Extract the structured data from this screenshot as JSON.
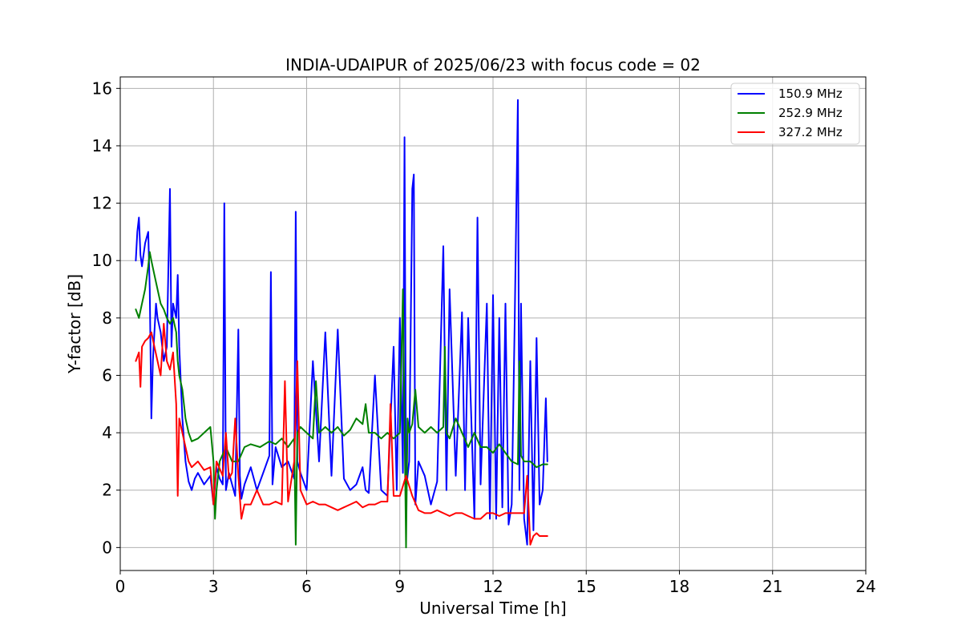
{
  "chart_data": {
    "type": "line",
    "title": "INDIA-UDAIPUR of 2025/06/23 with focus code = 02",
    "xlabel": "Universal Time [h]",
    "ylabel": "Y-factor [dB]",
    "xlim": [
      0,
      24
    ],
    "ylim": [
      -0.8,
      16.4
    ],
    "xticks": [
      0,
      3,
      6,
      9,
      12,
      15,
      18,
      21,
      24
    ],
    "yticks": [
      0,
      2,
      4,
      6,
      8,
      10,
      12,
      14,
      16
    ],
    "grid": true,
    "legend_position": "top-right",
    "series": [
      {
        "name": "150.9 MHz",
        "color": "#0000ff",
        "x": [
          0.5,
          0.55,
          0.6,
          0.65,
          0.7,
          0.8,
          0.9,
          0.95,
          1.0,
          1.05,
          1.1,
          1.15,
          1.2,
          1.3,
          1.4,
          1.5,
          1.6,
          1.65,
          1.7,
          1.8,
          1.85,
          1.9,
          2.0,
          2.1,
          2.2,
          2.3,
          2.4,
          2.5,
          2.7,
          2.9,
          3.0,
          3.1,
          3.2,
          3.3,
          3.35,
          3.4,
          3.5,
          3.7,
          3.8,
          3.85,
          3.9,
          4.0,
          4.2,
          4.4,
          4.6,
          4.8,
          4.85,
          4.9,
          5.0,
          5.2,
          5.4,
          5.6,
          5.65,
          5.7,
          5.8,
          6.0,
          6.2,
          6.4,
          6.6,
          6.8,
          7.0,
          7.2,
          7.4,
          7.6,
          7.8,
          7.9,
          8.0,
          8.2,
          8.4,
          8.6,
          8.8,
          8.9,
          9.0,
          9.1,
          9.15,
          9.2,
          9.3,
          9.4,
          9.45,
          9.5,
          9.6,
          9.8,
          10.0,
          10.2,
          10.4,
          10.5,
          10.6,
          10.8,
          11.0,
          11.1,
          11.2,
          11.4,
          11.5,
          11.6,
          11.8,
          11.9,
          12.0,
          12.1,
          12.2,
          12.3,
          12.4,
          12.5,
          12.6,
          12.7,
          12.8,
          12.85,
          12.9,
          13.0,
          13.1,
          13.2,
          13.3,
          13.4,
          13.5,
          13.6,
          13.7,
          13.75
        ],
        "values": [
          10.0,
          11.0,
          11.5,
          10.2,
          9.8,
          10.6,
          11.0,
          9.0,
          4.5,
          6.5,
          7.5,
          8.5,
          8.0,
          7.5,
          6.5,
          7.0,
          12.5,
          7.0,
          8.5,
          8.0,
          9.5,
          7.0,
          4.5,
          3.0,
          2.3,
          2.0,
          2.4,
          2.6,
          2.2,
          2.5,
          1.5,
          2.8,
          2.4,
          2.2,
          12.0,
          2.0,
          2.6,
          1.8,
          7.6,
          2.5,
          1.7,
          2.2,
          2.8,
          2.0,
          2.6,
          3.2,
          9.6,
          2.2,
          3.5,
          2.8,
          3.0,
          2.4,
          11.7,
          3.0,
          2.6,
          2.0,
          6.5,
          3.0,
          7.5,
          2.5,
          7.6,
          2.4,
          2.0,
          2.2,
          2.8,
          2.0,
          1.9,
          6.0,
          2.0,
          1.8,
          7.0,
          2.0,
          8.0,
          2.6,
          14.3,
          2.0,
          3.0,
          12.5,
          13.0,
          1.5,
          3.0,
          2.5,
          1.5,
          2.3,
          10.5,
          2.0,
          9.0,
          2.5,
          8.2,
          2.0,
          8.0,
          1.0,
          11.5,
          2.2,
          8.5,
          1.0,
          8.8,
          1.0,
          8.0,
          1.4,
          8.5,
          0.8,
          1.5,
          8.0,
          15.6,
          2.0,
          8.5,
          1.0,
          0.1,
          6.5,
          0.6,
          7.3,
          1.5,
          2.0,
          5.2,
          3.0
        ]
      },
      {
        "name": "252.9 MHz",
        "color": "#008000",
        "x": [
          0.5,
          0.6,
          0.7,
          0.8,
          0.9,
          0.95,
          1.0,
          1.1,
          1.2,
          1.3,
          1.4,
          1.5,
          1.6,
          1.7,
          1.8,
          1.85,
          1.9,
          2.0,
          2.1,
          2.2,
          2.3,
          2.5,
          2.7,
          2.9,
          3.0,
          3.05,
          3.1,
          3.2,
          3.4,
          3.6,
          3.8,
          4.0,
          4.2,
          4.5,
          4.8,
          5.0,
          5.2,
          5.4,
          5.6,
          5.65,
          5.7,
          5.8,
          6.0,
          6.2,
          6.3,
          6.4,
          6.6,
          6.8,
          7.0,
          7.2,
          7.4,
          7.6,
          7.8,
          7.9,
          8.0,
          8.2,
          8.4,
          8.6,
          8.8,
          9.0,
          9.1,
          9.2,
          9.25,
          9.3,
          9.4,
          9.5,
          9.6,
          9.8,
          10.0,
          10.2,
          10.4,
          10.45,
          10.5,
          10.6,
          10.8,
          11.0,
          11.2,
          11.4,
          11.6,
          11.8,
          12.0,
          12.2,
          12.4,
          12.6,
          12.8,
          12.85,
          12.9,
          13.0,
          13.2,
          13.4,
          13.6,
          13.75
        ],
        "values": [
          8.3,
          8.0,
          8.5,
          9.0,
          9.8,
          10.3,
          10.0,
          9.5,
          9.0,
          8.5,
          8.3,
          8.0,
          7.8,
          8.0,
          7.5,
          6.5,
          6.0,
          5.5,
          4.5,
          4.0,
          3.7,
          3.8,
          4.0,
          4.2,
          3.0,
          1.0,
          2.0,
          3.0,
          3.5,
          3.0,
          3.0,
          3.5,
          3.6,
          3.5,
          3.7,
          3.6,
          3.8,
          3.5,
          3.8,
          0.1,
          4.0,
          4.2,
          4.0,
          3.8,
          5.8,
          4.0,
          4.2,
          4.0,
          4.2,
          3.9,
          4.1,
          4.5,
          4.3,
          5.0,
          4.0,
          4.0,
          3.8,
          4.0,
          3.8,
          4.0,
          9.0,
          0.0,
          4.5,
          4.0,
          4.3,
          5.5,
          4.2,
          4.0,
          4.2,
          4.0,
          4.2,
          7.0,
          4.0,
          3.8,
          4.5,
          4.0,
          3.5,
          4.0,
          3.5,
          3.5,
          3.3,
          3.6,
          3.3,
          3.0,
          2.9,
          6.5,
          3.2,
          3.0,
          3.0,
          2.8,
          2.9,
          2.9
        ]
      },
      {
        "name": "327.2 MHz",
        "color": "#ff0000",
        "x": [
          0.5,
          0.6,
          0.65,
          0.7,
          0.8,
          0.9,
          1.0,
          1.1,
          1.2,
          1.3,
          1.4,
          1.5,
          1.6,
          1.7,
          1.8,
          1.85,
          1.9,
          2.0,
          2.1,
          2.2,
          2.3,
          2.5,
          2.7,
          2.9,
          3.0,
          3.1,
          3.3,
          3.4,
          3.5,
          3.6,
          3.7,
          3.8,
          3.9,
          4.0,
          4.2,
          4.4,
          4.6,
          4.8,
          5.0,
          5.2,
          5.3,
          5.4,
          5.6,
          5.7,
          5.8,
          6.0,
          6.2,
          6.4,
          6.6,
          6.8,
          7.0,
          7.2,
          7.4,
          7.6,
          7.8,
          8.0,
          8.2,
          8.4,
          8.6,
          8.7,
          8.8,
          9.0,
          9.2,
          9.4,
          9.6,
          9.8,
          10.0,
          10.2,
          10.4,
          10.6,
          10.8,
          11.0,
          11.2,
          11.4,
          11.6,
          11.8,
          12.0,
          12.2,
          12.4,
          12.6,
          12.8,
          13.0,
          13.1,
          13.2,
          13.3,
          13.4,
          13.5,
          13.6,
          13.75
        ],
        "values": [
          6.5,
          6.8,
          5.6,
          7.0,
          7.2,
          7.3,
          7.5,
          7.0,
          6.5,
          6.0,
          7.8,
          6.5,
          6.2,
          6.8,
          5.0,
          1.8,
          4.5,
          4.0,
          3.5,
          3.0,
          2.8,
          3.0,
          2.7,
          2.8,
          1.5,
          3.0,
          2.5,
          4.0,
          2.4,
          2.6,
          4.5,
          2.5,
          1.0,
          1.5,
          1.5,
          2.0,
          1.5,
          1.5,
          1.6,
          1.5,
          5.8,
          1.6,
          3.0,
          6.5,
          2.0,
          1.5,
          1.6,
          1.5,
          1.5,
          1.4,
          1.3,
          1.4,
          1.5,
          1.6,
          1.4,
          1.5,
          1.5,
          1.6,
          1.6,
          5.0,
          1.8,
          1.8,
          2.5,
          1.8,
          1.3,
          1.2,
          1.2,
          1.3,
          1.2,
          1.1,
          1.2,
          1.2,
          1.1,
          1.0,
          1.0,
          1.2,
          1.2,
          1.1,
          1.2,
          1.2,
          1.2,
          1.2,
          2.5,
          0.1,
          0.4,
          0.5,
          0.4,
          0.4,
          0.4
        ]
      }
    ]
  }
}
